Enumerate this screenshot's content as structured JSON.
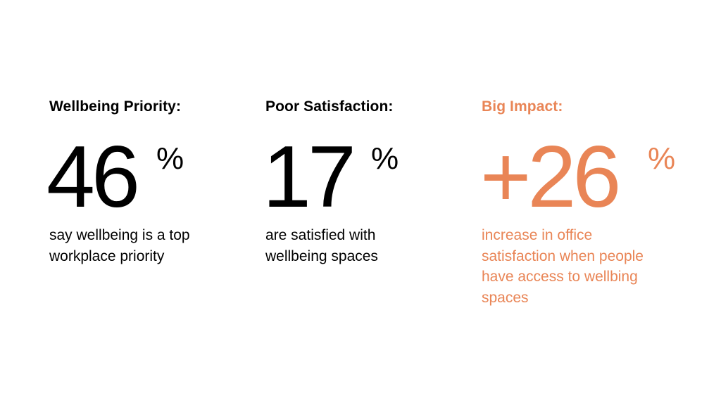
{
  "accent_color": "#E98556",
  "stats": [
    {
      "heading": "Wellbeing Priority:",
      "number": "46",
      "unit": "%",
      "description": "say wellbeing is a top workplace priority",
      "color": "#000000"
    },
    {
      "heading": "Poor Satisfaction:",
      "number": "17",
      "unit": "%",
      "description": "are satisfied with wellbeing spaces",
      "color": "#000000"
    },
    {
      "heading": "Big Impact:",
      "number": "+26",
      "unit": "%",
      "description": "increase in office satisfaction when people have access to wellbing spaces",
      "color": "#E98556"
    }
  ]
}
